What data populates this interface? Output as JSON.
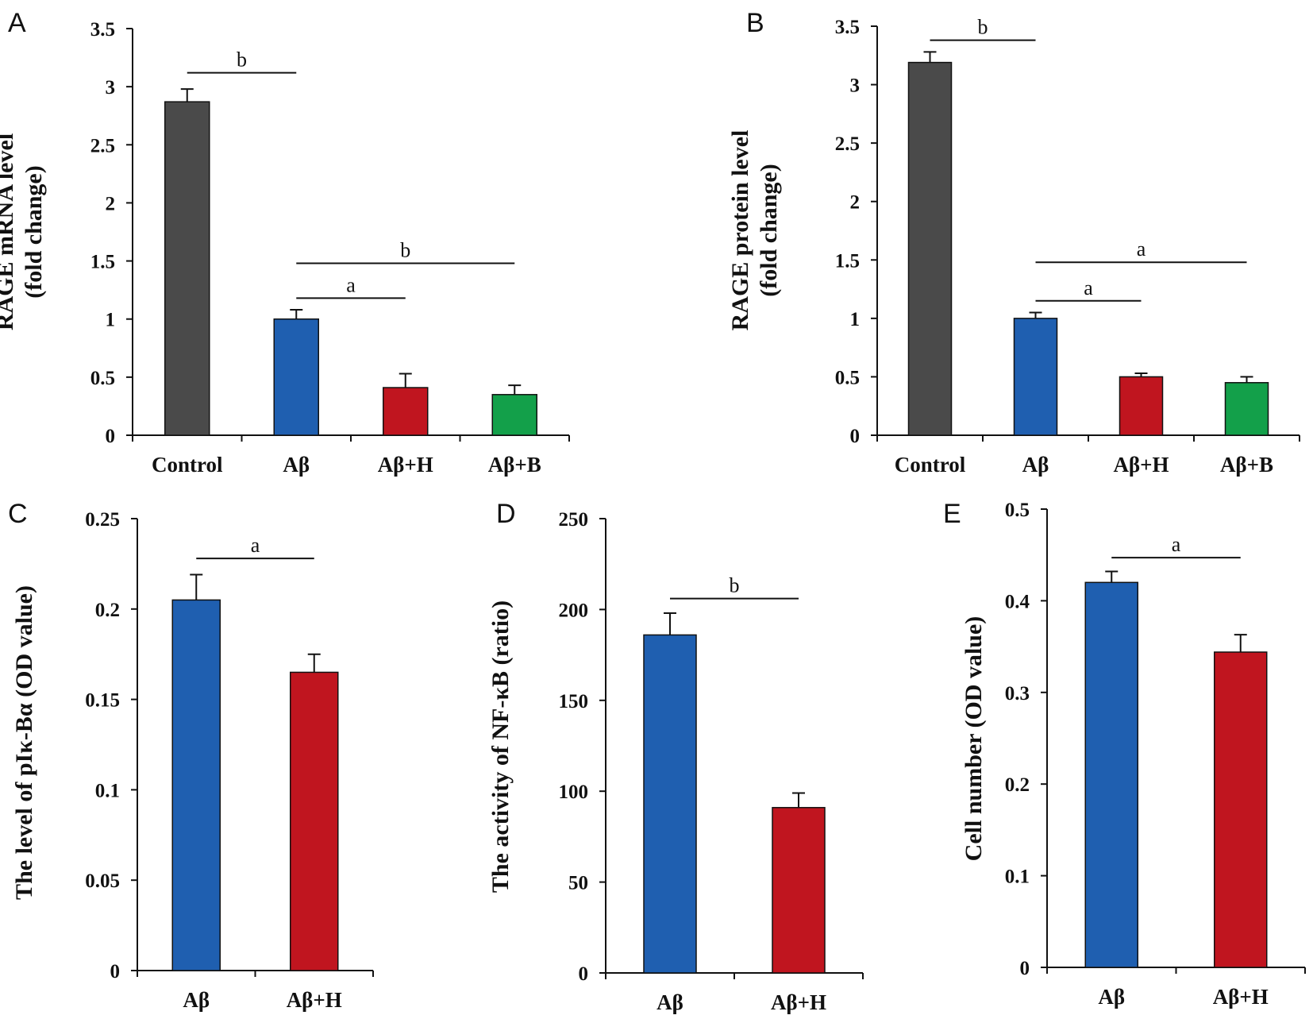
{
  "colors": {
    "Control": "#4a4a4a",
    "Aβ": "#1f5fb0",
    "Aβ+H": "#c0151f",
    "Aβ+B": "#13a04a"
  },
  "chart_data": [
    {
      "panel": "A",
      "type": "bar",
      "ylabel": [
        "RAGE mRNA level",
        "(fold change)"
      ],
      "categories": [
        "Control",
        "Aβ",
        "Aβ+H",
        "Aβ+B"
      ],
      "values": [
        2.87,
        1.0,
        0.41,
        0.35
      ],
      "errors": [
        0.11,
        0.08,
        0.12,
        0.08
      ],
      "ylim": [
        0,
        3.5
      ],
      "yticks": [
        "0",
        "0.5",
        "1",
        "1.5",
        "2",
        "2.5",
        "3",
        "3.5"
      ],
      "annotations": [
        {
          "label": "b",
          "from": "Control",
          "to": "Aβ",
          "y": 3.12
        },
        {
          "label": "b",
          "from": "Aβ",
          "to": "Aβ+B",
          "y": 1.48
        },
        {
          "label": "a",
          "from": "Aβ",
          "to": "Aβ+H",
          "y": 1.18
        }
      ]
    },
    {
      "panel": "B",
      "type": "bar",
      "ylabel": [
        "RAGE protein level",
        "(fold change)"
      ],
      "categories": [
        "Control",
        "Aβ",
        "Aβ+H",
        "Aβ+B"
      ],
      "values": [
        3.19,
        1.0,
        0.5,
        0.45
      ],
      "errors": [
        0.09,
        0.05,
        0.03,
        0.05
      ],
      "ylim": [
        0,
        3.5
      ],
      "yticks": [
        "0",
        "0.5",
        "1",
        "1.5",
        "2",
        "2.5",
        "3",
        "3.5"
      ],
      "annotations": [
        {
          "label": "b",
          "from": "Control",
          "to": "Aβ",
          "y": 3.38
        },
        {
          "label": "a",
          "from": "Aβ",
          "to": "Aβ+B",
          "y": 1.48
        },
        {
          "label": "a",
          "from": "Aβ",
          "to": "Aβ+H",
          "y": 1.15
        }
      ]
    },
    {
      "panel": "C",
      "type": "bar",
      "ylabel": [
        "The level of pIκ-Bα (OD value)"
      ],
      "categories": [
        "Aβ",
        "Aβ+H"
      ],
      "values": [
        0.205,
        0.165
      ],
      "errors": [
        0.014,
        0.01
      ],
      "ylim": [
        0,
        0.25
      ],
      "yticks": [
        "0",
        "0.05",
        "0.1",
        "0.15",
        "0.2",
        "0.25"
      ],
      "annotations": [
        {
          "label": "a",
          "from": "Aβ",
          "to": "Aβ+H",
          "y": 0.228
        }
      ]
    },
    {
      "panel": "D",
      "type": "bar",
      "ylabel": [
        "The activity of NF-κB (ratio)"
      ],
      "categories": [
        "Aβ",
        "Aβ+H"
      ],
      "values": [
        186,
        91
      ],
      "errors": [
        12,
        8
      ],
      "ylim": [
        0,
        250
      ],
      "yticks": [
        "0",
        "50",
        "100",
        "150",
        "200",
        "250"
      ],
      "annotations": [
        {
          "label": "b",
          "from": "Aβ",
          "to": "Aβ+H",
          "y": 206
        }
      ]
    },
    {
      "panel": "E",
      "type": "bar",
      "ylabel": [
        "Cell number (OD value)"
      ],
      "categories": [
        "Aβ",
        "Aβ+H"
      ],
      "values": [
        0.42,
        0.344
      ],
      "errors": [
        0.012,
        0.019
      ],
      "ylim": [
        0,
        0.5
      ],
      "yticks": [
        "0",
        "0.1",
        "0.2",
        "0.3",
        "0.4",
        "0.5"
      ],
      "annotations": [
        {
          "label": "a",
          "from": "Aβ",
          "to": "Aβ+H",
          "y": 0.447
        }
      ]
    }
  ]
}
